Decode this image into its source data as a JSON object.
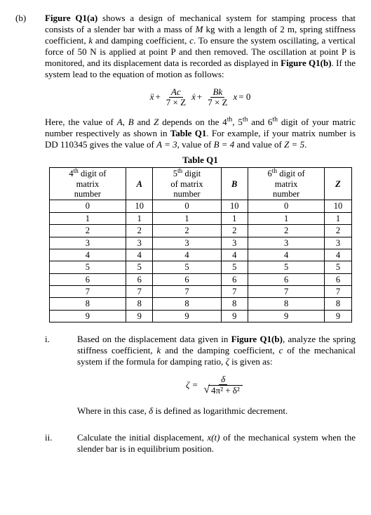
{
  "part_b": {
    "label": "(b)",
    "intro": {
      "lead_bold": "Figure Q1(a)",
      "text_1": " shows a design of mechanical system for stamping process that consists of a slender bar with a mass of ",
      "M": "M",
      "text_2": " kg with a length of 2 m, spring stiffness coefficient, ",
      "k": "k",
      "text_3": " and damping coefficient, ",
      "c": "c",
      "text_4": ". To ensure the system oscillating, a vertical force of 50 N is applied at point P and then removed.  The oscillation at point P is monitored, and its displacement data is recorded as displayed in ",
      "fig_b_bold": "Figure Q1(b)",
      "text_5": ". If the system lead to the equation of motion as follows:"
    },
    "equation": {
      "xddot": "ẍ",
      "plus1": " + ",
      "frac1_num_A": "A",
      "frac1_num_c": "c",
      "frac1_den": "7 × Z",
      "xdot": "ẋ",
      "plus2": " + ",
      "frac2_num_B": "B",
      "frac2_num_k": "k",
      "frac2_den": "7 × Z",
      "x": "x",
      "eq0": " = 0"
    },
    "para2": {
      "t1": "Here, the value of ",
      "A": "A",
      "t2": ", ",
      "B": "B",
      "t3": " and ",
      "Z": "Z",
      "t4": " depends on the 4",
      "th4": "th",
      "t5": ", 5",
      "th5": "th",
      "t6": " and 6",
      "th6": "th",
      "t7": " digit of your matric number respectively as shown in ",
      "table_bold": "Table Q1",
      "t8": ". For example, if your matrix number is DD 110345 gives the value of ",
      "Aeq": "A = 3",
      "t9": ", value of ",
      "Beq": "B = 4",
      "t10": " and value of ",
      "Zeq": "Z = 5",
      "t11": "."
    },
    "table": {
      "title": "Table Q1",
      "headers": {
        "c1_l1": "4",
        "c1_sup": "th",
        "c1_l1b": " digit of",
        "c1_l2": "matrix",
        "c1_l3": "number",
        "c2": "A",
        "c3_l1": "5",
        "c3_sup": "th",
        "c3_l1b": " digit",
        "c3_l2": "of matrix",
        "c3_l3": "number",
        "c4": "B",
        "c5_l1": "6",
        "c5_sup": "th",
        "c5_l1b": " digit of",
        "c5_l2": "matrix",
        "c5_l3": "number",
        "c6": "Z"
      },
      "rows": [
        [
          "0",
          "10",
          "0",
          "10",
          "0",
          "10"
        ],
        [
          "1",
          "1",
          "1",
          "1",
          "1",
          "1"
        ],
        [
          "2",
          "2",
          "2",
          "2",
          "2",
          "2"
        ],
        [
          "3",
          "3",
          "3",
          "3",
          "3",
          "3"
        ],
        [
          "4",
          "4",
          "4",
          "4",
          "4",
          "4"
        ],
        [
          "5",
          "5",
          "5",
          "5",
          "5",
          "5"
        ],
        [
          "6",
          "6",
          "6",
          "6",
          "6",
          "6"
        ],
        [
          "7",
          "7",
          "7",
          "7",
          "7",
          "7"
        ],
        [
          "8",
          "8",
          "8",
          "8",
          "8",
          "8"
        ],
        [
          "9",
          "9",
          "9",
          "9",
          "9",
          "9"
        ]
      ]
    },
    "sub_i": {
      "label": "i.",
      "t1": "Based on the displacement data given in ",
      "fig_bold": "Figure Q1(b)",
      "t2": ", analyze the spring stiffness coefficient, ",
      "k": "k",
      "t3": " and the damping coefficient, ",
      "c": "c",
      "t4": " of the mechanical system if the formula for damping ratio, ",
      "zeta": "ζ",
      "t5": " is given as:",
      "eq": {
        "lhs": "ζ = ",
        "num": "δ",
        "rad": "4π² + δ²"
      },
      "after": "Where in this case, ",
      "delta": "δ",
      "after2": " is defined as logarithmic decrement."
    },
    "sub_ii": {
      "label": "ii.",
      "t1": "Calculate the initial displacement, ",
      "xt": "x(t)",
      "t2": " of the mechanical system when the slender bar is in equilibrium position."
    }
  }
}
